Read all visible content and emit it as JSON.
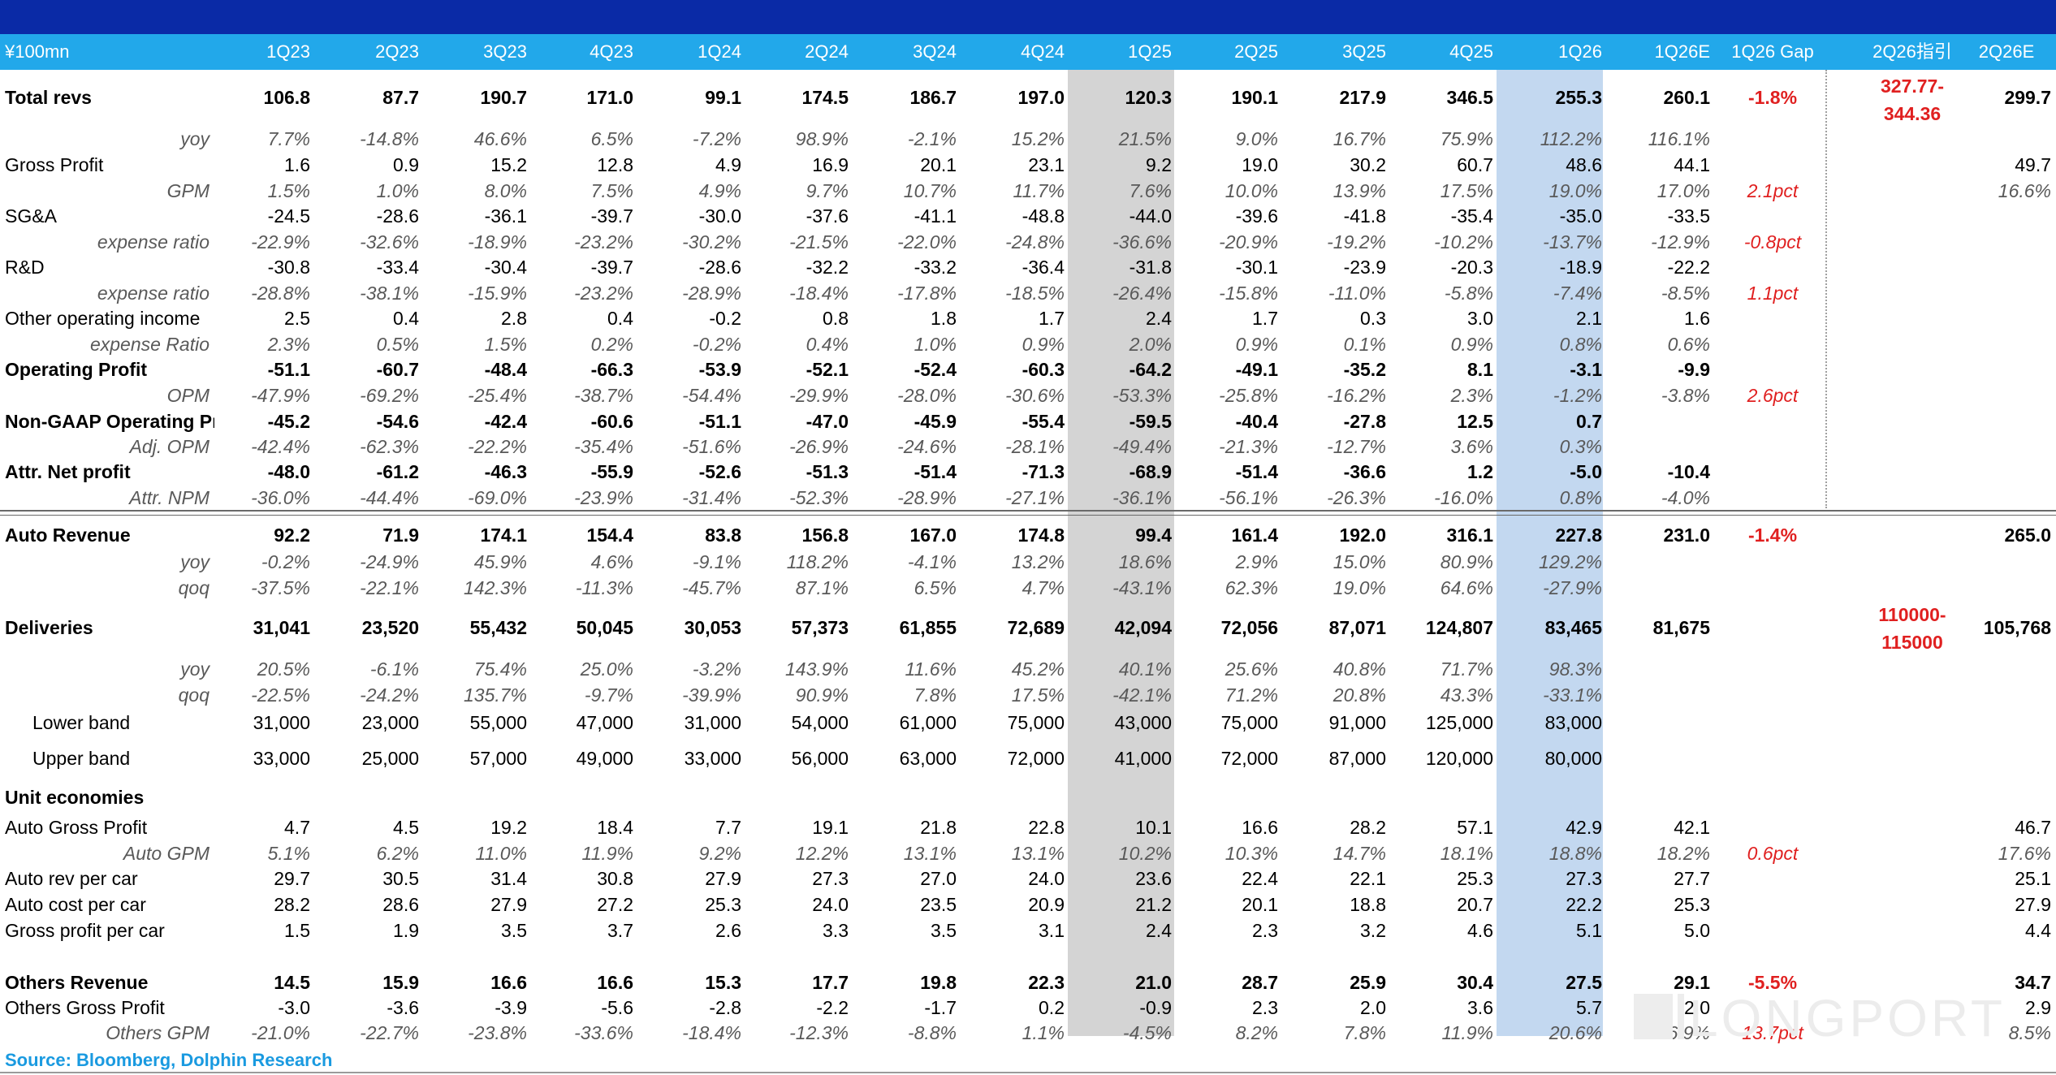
{
  "unit_label": "¥100mn",
  "columns": [
    "1Q23",
    "2Q23",
    "3Q23",
    "4Q23",
    "1Q24",
    "2Q24",
    "3Q24",
    "4Q24",
    "1Q25",
    "2Q25",
    "3Q25",
    "4Q25",
    "1Q26",
    "1Q26E",
    "1Q26 Gap",
    "2Q26指引",
    "2Q26E"
  ],
  "rows": [
    {
      "label": "Total revs",
      "style": "bold",
      "tall": true,
      "values": [
        "106.8",
        "87.7",
        "190.7",
        "171.0",
        "99.1",
        "174.5",
        "186.7",
        "197.0",
        "120.3",
        "190.1",
        "217.9",
        "346.5",
        "255.3",
        "260.1",
        "-1.8%",
        "",
        "299.7"
      ]
    },
    {
      "label": "yoy",
      "style": "italic",
      "values": [
        "7.7%",
        "-14.8%",
        "46.6%",
        "6.5%",
        "-7.2%",
        "98.9%",
        "-2.1%",
        "15.2%",
        "21.5%",
        "9.0%",
        "16.7%",
        "75.9%",
        "112.2%",
        "116.1%",
        "",
        "",
        ""
      ]
    },
    {
      "label": "Gross Profit",
      "style": "normal",
      "values": [
        "1.6",
        "0.9",
        "15.2",
        "12.8",
        "4.9",
        "16.9",
        "20.1",
        "23.1",
        "9.2",
        "19.0",
        "30.2",
        "60.7",
        "48.6",
        "44.1",
        "",
        "",
        "49.7"
      ]
    },
    {
      "label": "GPM",
      "style": "italic",
      "values": [
        "1.5%",
        "1.0%",
        "8.0%",
        "7.5%",
        "4.9%",
        "9.7%",
        "10.7%",
        "11.7%",
        "7.6%",
        "10.0%",
        "13.9%",
        "17.5%",
        "19.0%",
        "17.0%",
        "2.1pct",
        "",
        "16.6%"
      ]
    },
    {
      "label": "SG&A",
      "style": "normal",
      "values": [
        "-24.5",
        "-28.6",
        "-36.1",
        "-39.7",
        "-30.0",
        "-37.6",
        "-41.1",
        "-48.8",
        "-44.0",
        "-39.6",
        "-41.8",
        "-35.4",
        "-35.0",
        "-33.5",
        "",
        "",
        ""
      ]
    },
    {
      "label": "expense ratio",
      "style": "italic",
      "values": [
        "-22.9%",
        "-32.6%",
        "-18.9%",
        "-23.2%",
        "-30.2%",
        "-21.5%",
        "-22.0%",
        "-24.8%",
        "-36.6%",
        "-20.9%",
        "-19.2%",
        "-10.2%",
        "-13.7%",
        "-12.9%",
        "-0.8pct",
        "",
        ""
      ]
    },
    {
      "label": "R&D",
      "style": "normal",
      "values": [
        "-30.8",
        "-33.4",
        "-30.4",
        "-39.7",
        "-28.6",
        "-32.2",
        "-33.2",
        "-36.4",
        "-31.8",
        "-30.1",
        "-23.9",
        "-20.3",
        "-18.9",
        "-22.2",
        "",
        "",
        ""
      ]
    },
    {
      "label": "expense ratio",
      "style": "italic",
      "values": [
        "-28.8%",
        "-38.1%",
        "-15.9%",
        "-23.2%",
        "-28.9%",
        "-18.4%",
        "-17.8%",
        "-18.5%",
        "-26.4%",
        "-15.8%",
        "-11.0%",
        "-5.8%",
        "-7.4%",
        "-8.5%",
        "1.1pct",
        "",
        ""
      ]
    },
    {
      "label": "Other operating income",
      "style": "normal",
      "values": [
        "2.5",
        "0.4",
        "2.8",
        "0.4",
        "-0.2",
        "0.8",
        "1.8",
        "1.7",
        "2.4",
        "1.7",
        "0.3",
        "3.0",
        "2.1",
        "1.6",
        "",
        "",
        ""
      ]
    },
    {
      "label": "expense Ratio",
      "style": "italic",
      "values": [
        "2.3%",
        "0.5%",
        "1.5%",
        "0.2%",
        "-0.2%",
        "0.4%",
        "1.0%",
        "0.9%",
        "2.0%",
        "0.9%",
        "0.1%",
        "0.9%",
        "0.8%",
        "0.6%",
        "",
        "",
        ""
      ]
    },
    {
      "label": "Operating Profit",
      "style": "bold",
      "values": [
        "-51.1",
        "-60.7",
        "-48.4",
        "-66.3",
        "-53.9",
        "-52.1",
        "-52.4",
        "-60.3",
        "-64.2",
        "-49.1",
        "-35.2",
        "8.1",
        "-3.1",
        "-9.9",
        "",
        "",
        ""
      ]
    },
    {
      "label": "OPM",
      "style": "italic",
      "values": [
        "-47.9%",
        "-69.2%",
        "-25.4%",
        "-38.7%",
        "-54.4%",
        "-29.9%",
        "-28.0%",
        "-30.6%",
        "-53.3%",
        "-25.8%",
        "-16.2%",
        "2.3%",
        "-1.2%",
        "-3.8%",
        "2.6pct",
        "",
        ""
      ]
    },
    {
      "label": "Non-GAAP Operating Profit",
      "style": "bold",
      "values": [
        "-45.2",
        "-54.6",
        "-42.4",
        "-60.6",
        "-51.1",
        "-47.0",
        "-45.9",
        "-55.4",
        "-59.5",
        "-40.4",
        "-27.8",
        "12.5",
        "0.7",
        "",
        "",
        "",
        ""
      ]
    },
    {
      "label": "Adj. OPM",
      "style": "italic",
      "values": [
        "-42.4%",
        "-62.3%",
        "-22.2%",
        "-35.4%",
        "-51.6%",
        "-26.9%",
        "-24.6%",
        "-28.1%",
        "-49.4%",
        "-21.3%",
        "-12.7%",
        "3.6%",
        "0.3%",
        "",
        "",
        "",
        ""
      ]
    },
    {
      "label": "Attr. Net profit",
      "style": "bold",
      "values": [
        "-48.0",
        "-61.2",
        "-46.3",
        "-55.9",
        "-52.6",
        "-51.3",
        "-51.4",
        "-71.3",
        "-68.9",
        "-51.4",
        "-36.6",
        "1.2",
        "-5.0",
        "-10.4",
        "",
        "",
        ""
      ]
    },
    {
      "label": "Attr. NPM",
      "style": "italic",
      "values": [
        "-36.0%",
        "-44.4%",
        "-69.0%",
        "-23.9%",
        "-31.4%",
        "-52.3%",
        "-28.9%",
        "-27.1%",
        "-36.1%",
        "-56.1%",
        "-26.3%",
        "-16.0%",
        "0.8%",
        "-4.0%",
        "",
        "",
        ""
      ]
    },
    {
      "label": "Auto Revenue",
      "style": "bold",
      "values": [
        "92.2",
        "71.9",
        "174.1",
        "154.4",
        "83.8",
        "156.8",
        "167.0",
        "174.8",
        "99.4",
        "161.4",
        "192.0",
        "316.1",
        "227.8",
        "231.0",
        "-1.4%",
        "",
        "265.0"
      ]
    },
    {
      "label": "yoy",
      "style": "italic",
      "values": [
        "-0.2%",
        "-24.9%",
        "45.9%",
        "4.6%",
        "-9.1%",
        "118.2%",
        "-4.1%",
        "13.2%",
        "18.6%",
        "2.9%",
        "15.0%",
        "80.9%",
        "129.2%",
        "",
        "",
        "",
        ""
      ]
    },
    {
      "label": "qoq",
      "style": "italic",
      "values": [
        "-37.5%",
        "-22.1%",
        "142.3%",
        "-11.3%",
        "-45.7%",
        "87.1%",
        "6.5%",
        "4.7%",
        "-43.1%",
        "62.3%",
        "19.0%",
        "64.6%",
        "-27.9%",
        "",
        "",
        "",
        ""
      ]
    },
    {
      "label": "Deliveries",
      "style": "bold",
      "values": [
        "31,041",
        "23,520",
        "55,432",
        "50,045",
        "30,053",
        "57,373",
        "61,855",
        "72,689",
        "42,094",
        "72,056",
        "87,071",
        "124,807",
        "83,465",
        "81,675",
        "",
        "",
        "105,768"
      ]
    },
    {
      "label": "yoy",
      "style": "italic",
      "values": [
        "20.5%",
        "-6.1%",
        "75.4%",
        "25.0%",
        "-3.2%",
        "143.9%",
        "11.6%",
        "45.2%",
        "40.1%",
        "25.6%",
        "40.8%",
        "71.7%",
        "98.3%",
        "",
        "",
        "",
        ""
      ]
    },
    {
      "label": "qoq",
      "style": "italic",
      "values": [
        "-22.5%",
        "-24.2%",
        "135.7%",
        "-9.7%",
        "-39.9%",
        "90.9%",
        "7.8%",
        "17.5%",
        "-42.1%",
        "71.2%",
        "20.8%",
        "43.3%",
        "-33.1%",
        "",
        "",
        "",
        ""
      ]
    },
    {
      "label": "Lower band",
      "style": "indent",
      "values": [
        "31,000",
        "23,000",
        "55,000",
        "47,000",
        "31,000",
        "54,000",
        "61,000",
        "75,000",
        "43,000",
        "75,000",
        "91,000",
        "125,000",
        "83,000",
        "",
        "",
        "",
        ""
      ]
    },
    {
      "label": "Upper band",
      "style": "indent",
      "values": [
        "33,000",
        "25,000",
        "57,000",
        "49,000",
        "33,000",
        "56,000",
        "63,000",
        "72,000",
        "41,000",
        "72,000",
        "87,000",
        "120,000",
        "80,000",
        "",
        "",
        "",
        ""
      ]
    },
    {
      "label": "Unit economies",
      "style": "bold",
      "values": [
        "",
        "",
        "",
        "",
        "",
        "",
        "",
        "",
        "",
        "",
        "",
        "",
        "",
        "",
        "",
        "",
        ""
      ]
    },
    {
      "label": "Auto Gross Profit",
      "style": "normal",
      "values": [
        "4.7",
        "4.5",
        "19.2",
        "18.4",
        "7.7",
        "19.1",
        "21.8",
        "22.8",
        "10.1",
        "16.6",
        "28.2",
        "57.1",
        "42.9",
        "42.1",
        "",
        "",
        "46.7"
      ]
    },
    {
      "label": "Auto GPM",
      "style": "italic",
      "values": [
        "5.1%",
        "6.2%",
        "11.0%",
        "11.9%",
        "9.2%",
        "12.2%",
        "13.1%",
        "13.1%",
        "10.2%",
        "10.3%",
        "14.7%",
        "18.1%",
        "18.8%",
        "18.2%",
        "0.6pct",
        "",
        "17.6%"
      ]
    },
    {
      "label": "Auto rev per car",
      "style": "normal",
      "values": [
        "29.7",
        "30.5",
        "31.4",
        "30.8",
        "27.9",
        "27.3",
        "27.0",
        "24.0",
        "23.6",
        "22.4",
        "22.1",
        "25.3",
        "27.3",
        "27.7",
        "",
        "",
        "25.1"
      ]
    },
    {
      "label": "Auto cost per car",
      "style": "normal",
      "values": [
        "28.2",
        "28.6",
        "27.9",
        "27.2",
        "25.3",
        "24.0",
        "23.5",
        "20.9",
        "21.2",
        "20.1",
        "18.8",
        "20.7",
        "22.2",
        "25.3",
        "",
        "",
        "27.9"
      ]
    },
    {
      "label": "Gross profit per car",
      "style": "normal",
      "values": [
        "1.5",
        "1.9",
        "3.5",
        "3.7",
        "2.6",
        "3.3",
        "3.5",
        "3.1",
        "2.4",
        "2.3",
        "3.2",
        "4.6",
        "5.1",
        "5.0",
        "",
        "",
        "4.4"
      ]
    },
    {
      "label": "Others Revenue",
      "style": "bold",
      "values": [
        "14.5",
        "15.9",
        "16.6",
        "16.6",
        "15.3",
        "17.7",
        "19.8",
        "22.3",
        "21.0",
        "28.7",
        "25.9",
        "30.4",
        "27.5",
        "29.1",
        "-5.5%",
        "",
        "34.7"
      ]
    },
    {
      "label": "Others Gross Profit",
      "style": "normal",
      "values": [
        "-3.0",
        "-3.6",
        "-3.9",
        "-5.6",
        "-2.8",
        "-2.2",
        "-1.7",
        "0.2",
        "-0.9",
        "2.3",
        "2.0",
        "3.6",
        "5.7",
        "2.0",
        "",
        "",
        "2.9"
      ]
    },
    {
      "label": "Others GPM",
      "style": "italic",
      "values": [
        "-21.0%",
        "-22.7%",
        "-23.8%",
        "-33.6%",
        "-18.4%",
        "-12.3%",
        "-8.8%",
        "1.1%",
        "-4.5%",
        "8.2%",
        "7.8%",
        "11.9%",
        "20.6%",
        "6.9%",
        "13.7pct",
        "",
        "8.5%"
      ]
    }
  ],
  "guidance": {
    "revenue": [
      "327.77-",
      "344.36"
    ],
    "deliveries": [
      "110000-",
      "115000"
    ]
  },
  "source": "Source:  Bloomberg,  Dolphin Research",
  "watermark": "LONGPORT"
}
